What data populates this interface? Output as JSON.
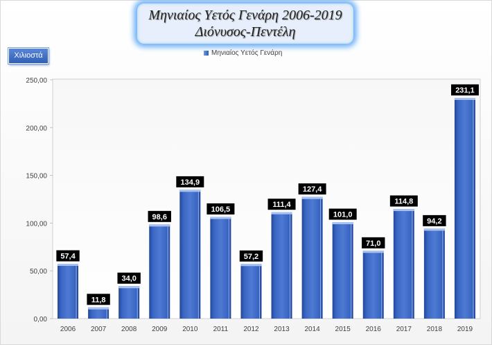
{
  "chart_data": {
    "type": "bar",
    "title": [
      "Μηνιαίος Υετός Γενάρη 2006-2019",
      "Διόνυσος-Πεντέλη"
    ],
    "ylabel": "Χιλιοστά",
    "xlabel": "",
    "ylim": [
      0,
      250
    ],
    "yticks": [
      0,
      50,
      100,
      150,
      200,
      250
    ],
    "ytick_labels": [
      "0,00",
      "50,00",
      "100,00",
      "150,00",
      "200,00",
      "250,00"
    ],
    "categories": [
      "2006",
      "2007",
      "2008",
      "2009",
      "2010",
      "2011",
      "2012",
      "2013",
      "2014",
      "2015",
      "2016",
      "2017",
      "2018",
      "2019"
    ],
    "series": [
      {
        "name": "Μηνιαίος Υετός Γενάρη",
        "values": [
          57.4,
          11.8,
          34.0,
          98.6,
          134.9,
          106.5,
          57.2,
          111.4,
          127.4,
          101.0,
          71.0,
          114.8,
          94.2,
          231.1
        ],
        "labels": [
          "57,4",
          "11,8",
          "34,0",
          "98,6",
          "134,9",
          "106,5",
          "57,2",
          "111,4",
          "127,4",
          "101,0",
          "71,0",
          "114,8",
          "94,2",
          "231,1"
        ]
      }
    ],
    "legend": "top-center",
    "grid": false,
    "colors": {
      "bar": "#3a67c4",
      "bar_dark": "#23479a",
      "bar_light": "#86a9ea",
      "label_bg": "#000000",
      "label_text": "#ffffff"
    }
  }
}
